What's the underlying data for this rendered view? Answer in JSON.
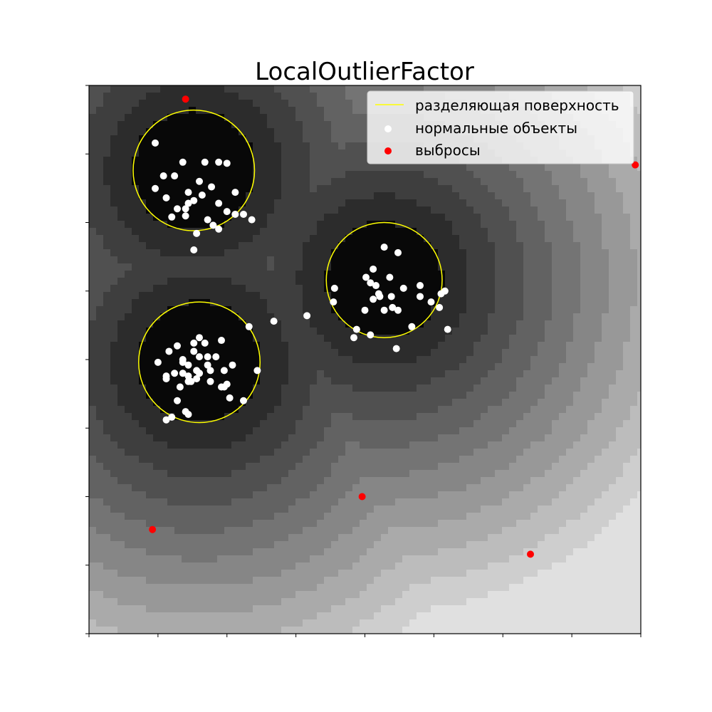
{
  "chart_data": {
    "type": "scatter",
    "title": "LocalOutlierFactor",
    "xlabel": "",
    "ylabel": "",
    "xlim": [
      -5,
      5
    ],
    "ylim": [
      -5,
      5
    ],
    "grid": false,
    "tick_labels_shown": false,
    "legend_position": "top-right",
    "colors": {
      "contour": "#ffff00",
      "normal": "#ffffff",
      "outlier": "#ff0000",
      "background_dark": "#0a0a0a",
      "background_light": "#eeeeee"
    },
    "series": [
      {
        "name": "разделяющая поверхность",
        "kind": "contour",
        "regions": [
          {
            "center": [
              -3.1,
              3.45
            ],
            "radius": 1.1
          },
          {
            "center": [
              0.35,
              1.45
            ],
            "radius": 1.05
          },
          {
            "center": [
              -3.0,
              -0.05
            ],
            "radius": 1.1
          }
        ]
      },
      {
        "name": "нормальные объекты",
        "kind": "scatter",
        "points": [
          [
            -3.8,
            3.95
          ],
          [
            -3.3,
            3.6
          ],
          [
            -2.9,
            3.6
          ],
          [
            -2.65,
            3.6
          ],
          [
            -2.5,
            3.58
          ],
          [
            -3.65,
            3.35
          ],
          [
            -3.0,
            3.25
          ],
          [
            -3.8,
            3.12
          ],
          [
            -3.6,
            2.95
          ],
          [
            -3.45,
            3.35
          ],
          [
            -3.2,
            3.05
          ],
          [
            -2.95,
            3.0
          ],
          [
            -2.78,
            3.15
          ],
          [
            -3.4,
            2.75
          ],
          [
            -3.1,
            2.9
          ],
          [
            -2.65,
            2.85
          ],
          [
            -2.35,
            3.05
          ],
          [
            -3.25,
            2.62
          ],
          [
            -3.5,
            2.6
          ],
          [
            -2.85,
            2.55
          ],
          [
            -2.5,
            2.7
          ],
          [
            -2.35,
            2.65
          ],
          [
            -2.2,
            2.65
          ],
          [
            -2.05,
            2.55
          ],
          [
            -2.75,
            2.45
          ],
          [
            -3.05,
            2.3
          ],
          [
            -2.65,
            2.38
          ],
          [
            -3.1,
            2.0
          ],
          [
            -3.25,
            2.75
          ],
          [
            -3.2,
            2.85
          ],
          [
            0.35,
            2.05
          ],
          [
            0.6,
            1.95
          ],
          [
            0.15,
            1.65
          ],
          [
            0.02,
            1.5
          ],
          [
            0.2,
            1.35
          ],
          [
            0.27,
            1.15
          ],
          [
            0.48,
            1.15
          ],
          [
            0.7,
            1.3
          ],
          [
            1.0,
            1.35
          ],
          [
            1.0,
            1.15
          ],
          [
            -0.55,
            1.3
          ],
          [
            -0.57,
            1.05
          ],
          [
            0.1,
            1.4
          ],
          [
            0.25,
            1.2
          ],
          [
            0.45,
            1.5
          ],
          [
            0.5,
            0.95
          ],
          [
            0.6,
            0.9
          ],
          [
            0.35,
            0.9
          ],
          [
            0.0,
            0.9
          ],
          [
            1.2,
            1.05
          ],
          [
            1.35,
            0.95
          ],
          [
            1.38,
            1.2
          ],
          [
            1.5,
            0.55
          ],
          [
            0.85,
            0.6
          ],
          [
            0.1,
            0.45
          ],
          [
            -0.15,
            0.55
          ],
          [
            -0.2,
            0.4
          ],
          [
            0.57,
            0.2
          ],
          [
            1.45,
            1.25
          ],
          [
            0.15,
            1.1
          ],
          [
            -2.1,
            0.6
          ],
          [
            -2.6,
            0.35
          ],
          [
            -3.4,
            0.25
          ],
          [
            -3.1,
            0.15
          ],
          [
            -2.85,
            0.05
          ],
          [
            -3.0,
            0.05
          ],
          [
            -3.3,
            0.0
          ],
          [
            -3.2,
            -0.1
          ],
          [
            -3.05,
            -0.2
          ],
          [
            -3.0,
            -0.25
          ],
          [
            -2.85,
            -0.1
          ],
          [
            -2.8,
            -0.4
          ],
          [
            -2.4,
            -0.1
          ],
          [
            -3.75,
            -0.05
          ],
          [
            -3.6,
            -0.3
          ],
          [
            -3.2,
            -0.4
          ],
          [
            -3.6,
            -0.35
          ],
          [
            -3.0,
            -0.25
          ],
          [
            -2.8,
            -0.2
          ],
          [
            -2.55,
            -0.2
          ],
          [
            -2.55,
            -0.5
          ],
          [
            -2.5,
            -0.45
          ],
          [
            -1.95,
            -0.2
          ],
          [
            -3.35,
            -0.5
          ],
          [
            -3.4,
            -0.75
          ],
          [
            -3.25,
            -0.95
          ],
          [
            -3.15,
            -0.4
          ],
          [
            -3.3,
            -0.05
          ],
          [
            -3.55,
            0.15
          ],
          [
            -3.2,
            -0.3
          ]
        ],
        "extra_points": [
          [
            -1.05,
            0.8
          ],
          [
            -3.45,
            -0.25
          ],
          [
            -2.45,
            -0.7
          ],
          [
            -3.6,
            -1.1
          ],
          [
            -3.2,
            -1.0
          ],
          [
            -3.05,
            -0.35
          ],
          [
            -1.65,
            0.7
          ],
          [
            -3.3,
            -0.25
          ],
          [
            -3.1,
            0.3
          ],
          [
            -2.7,
            0.05
          ],
          [
            -3.0,
            0.4
          ],
          [
            -2.2,
            -0.75
          ],
          [
            -2.6,
            -0.5
          ],
          [
            -3.5,
            -1.05
          ],
          [
            -2.9,
            0.3
          ]
        ]
      },
      {
        "name": "выбросы",
        "kind": "scatter",
        "points": [
          [
            -3.25,
            4.75
          ],
          [
            4.9,
            3.55
          ],
          [
            -0.05,
            -2.5
          ],
          [
            -3.85,
            -3.1
          ],
          [
            3.0,
            -3.55
          ]
        ]
      }
    ]
  }
}
